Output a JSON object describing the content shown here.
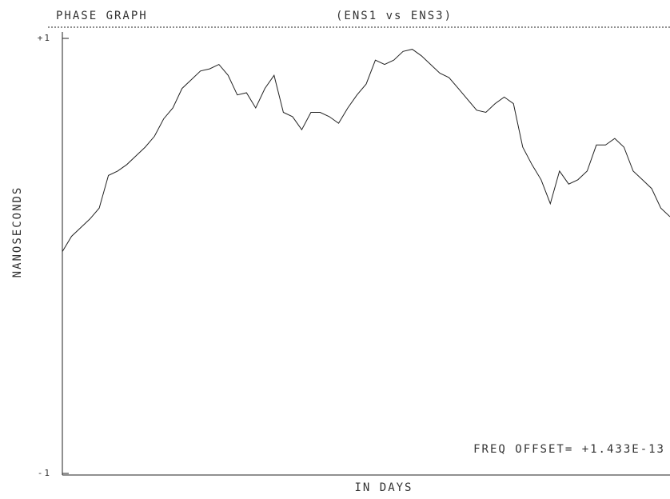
{
  "chart_data": {
    "type": "line",
    "title": "PHASE GRAPH",
    "subtitle": "(ENS1 vs ENS3)",
    "y_label": "NANOSECONDS",
    "x_label": "IN DAYS",
    "annotation": "FREQ OFFSET= +1.433E-13",
    "ylim": [
      -1,
      1
    ],
    "yticks": [
      {
        "value": -1,
        "label": "-1"
      },
      {
        "value": 1,
        "label": "+1"
      }
    ],
    "series": [
      {
        "color": "#222222",
        "values": [
          0.02,
          0.09,
          0.13,
          0.17,
          0.22,
          0.37,
          0.39,
          0.42,
          0.46,
          0.5,
          0.55,
          0.63,
          0.68,
          0.77,
          0.81,
          0.85,
          0.86,
          0.88,
          0.83,
          0.74,
          0.75,
          0.68,
          0.77,
          0.83,
          0.66,
          0.64,
          0.58,
          0.66,
          0.66,
          0.64,
          0.61,
          0.68,
          0.74,
          0.79,
          0.9,
          0.88,
          0.9,
          0.94,
          0.95,
          0.92,
          0.88,
          0.84,
          0.82,
          0.77,
          0.72,
          0.67,
          0.66,
          0.7,
          0.73,
          0.7,
          0.5,
          0.42,
          0.35,
          0.24,
          0.39,
          0.33,
          0.35,
          0.39,
          0.51,
          0.51,
          0.54,
          0.5,
          0.39,
          0.35,
          0.31,
          0.22,
          0.18
        ]
      }
    ]
  }
}
